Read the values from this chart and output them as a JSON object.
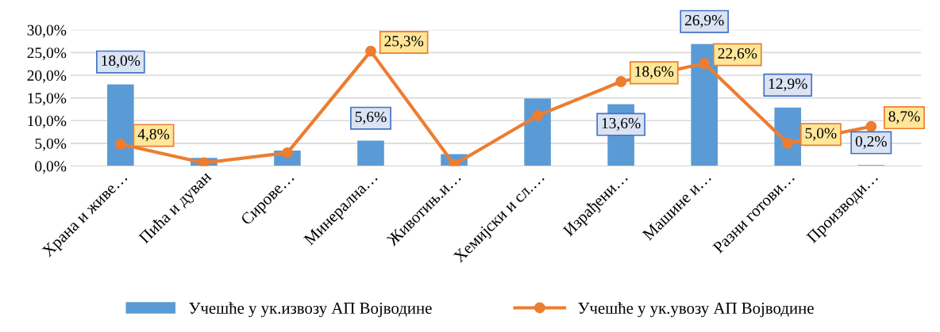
{
  "chart_data": {
    "type": "bar",
    "categories": [
      "Храна и живе…",
      "Пића и дуван",
      "Сирове…",
      "Минерална…",
      "Животињ.и…",
      "Хемијски и сл.…",
      "Израђени…",
      "Машине и…",
      "Разни готови…",
      "Производи…"
    ],
    "series": [
      {
        "name": "Учешће у ук.извозу АП Војводине",
        "color": "#5b9bd5",
        "values": [
          18.0,
          1.8,
          3.4,
          5.6,
          2.6,
          14.9,
          13.6,
          26.9,
          12.9,
          0.2
        ],
        "value_labels": [
          "18,0%",
          null,
          null,
          "5,6%",
          null,
          null,
          "13,6%",
          "26,9%",
          "12,9%",
          "0,2%"
        ]
      },
      {
        "name": "Учешће у ук.увозу АП Војводине",
        "type": "line",
        "color": "#ed7d31",
        "marker": "circle",
        "line_style": "solid",
        "values": [
          4.8,
          0.7,
          2.9,
          25.3,
          0.3,
          11.1,
          18.6,
          22.6,
          5.0,
          8.7
        ],
        "value_labels": [
          "4,8%",
          null,
          null,
          "25,3%",
          null,
          null,
          "18,6%",
          "22,6%",
          "5,0%",
          "8,7%"
        ]
      }
    ],
    "ylim": [
      0,
      30
    ],
    "yticks": [
      {
        "value": 0,
        "label": "0,0%"
      },
      {
        "value": 5,
        "label": "5,0%"
      },
      {
        "value": 10,
        "label": "10,0%"
      },
      {
        "value": 15,
        "label": "15,0%"
      },
      {
        "value": 20,
        "label": "20,0%"
      },
      {
        "value": 25,
        "label": "25,0%"
      },
      {
        "value": 30,
        "label": "30,0%"
      }
    ],
    "grid": "y",
    "legend": "bottom"
  }
}
